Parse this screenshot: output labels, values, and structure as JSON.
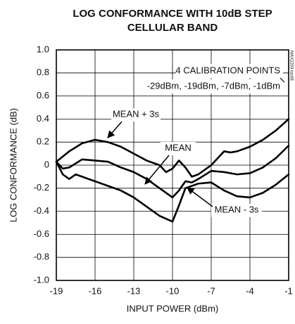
{
  "chart_data": {
    "type": "line",
    "title": [
      "LOG CONFORMANCE WITH 10dB STEP",
      "CELLULAR BAND"
    ],
    "x_label": "INPUT POWER (dBm)",
    "y_label": "LOG CONFORMANCE (dB)",
    "source_note": "MAX2203 toc06",
    "annotations": [
      "4 CALIBRATION POINTS",
      "-29dBm, -19dBm, -7dBm, -1dBm"
    ],
    "xlim": [
      -19,
      -1
    ],
    "xticks": [
      -19,
      -16,
      -13,
      -10,
      -7,
      -4,
      -1
    ],
    "ylim": [
      -1,
      1
    ],
    "yticks": [
      {
        "value": 1,
        "label": "1.0"
      },
      0.8,
      0.6,
      0.4,
      0.2,
      0,
      -0.2,
      -0.4,
      -0.6,
      -0.8,
      {
        "value": -1,
        "label": "-1.0"
      }
    ],
    "grid": true,
    "series": [
      {
        "name": "MEAN + 3s",
        "color": "#000000",
        "x": [
          -19,
          -18,
          -17,
          -16,
          -15,
          -14,
          -13,
          -12,
          -11,
          -10.5,
          -10,
          -9.5,
          -9,
          -8.5,
          -8,
          -7,
          -6,
          -5.5,
          -5,
          -4,
          -3,
          -2,
          -1
        ],
        "values": [
          0.03,
          0.12,
          0.19,
          0.22,
          0.2,
          0.16,
          0.1,
          0.04,
          0.0,
          -0.06,
          -0.03,
          0.04,
          -0.02,
          -0.1,
          -0.08,
          0.0,
          0.12,
          0.11,
          0.12,
          0.16,
          0.22,
          0.3,
          0.4
        ]
      },
      {
        "name": "MEAN",
        "color": "#000000",
        "x": [
          -19,
          -18.5,
          -18,
          -17,
          -16,
          -15,
          -14,
          -13,
          -12,
          -11,
          -10,
          -9.5,
          -9,
          -8.5,
          -8,
          -7,
          -6,
          -5,
          -4,
          -3,
          -2,
          -1
        ],
        "values": [
          0.03,
          -0.03,
          -0.02,
          0.05,
          0.04,
          0.03,
          -0.02,
          -0.06,
          -0.12,
          -0.2,
          -0.28,
          -0.22,
          -0.14,
          -0.15,
          -0.12,
          -0.05,
          -0.06,
          -0.08,
          -0.07,
          -0.02,
          0.06,
          0.17
        ]
      },
      {
        "name": "MEAN - 3s",
        "color": "#000000",
        "x": [
          -19,
          -18.5,
          -18,
          -17.5,
          -17,
          -16,
          -15,
          -14,
          -13,
          -12,
          -11,
          -10,
          -9.5,
          -9,
          -8,
          -7,
          -6,
          -5,
          -4,
          -3,
          -2,
          -1
        ],
        "values": [
          0.03,
          -0.08,
          -0.12,
          -0.08,
          -0.1,
          -0.14,
          -0.18,
          -0.22,
          -0.28,
          -0.36,
          -0.44,
          -0.49,
          -0.35,
          -0.2,
          -0.16,
          -0.15,
          -0.22,
          -0.27,
          -0.28,
          -0.24,
          -0.17,
          -0.08
        ]
      }
    ]
  }
}
